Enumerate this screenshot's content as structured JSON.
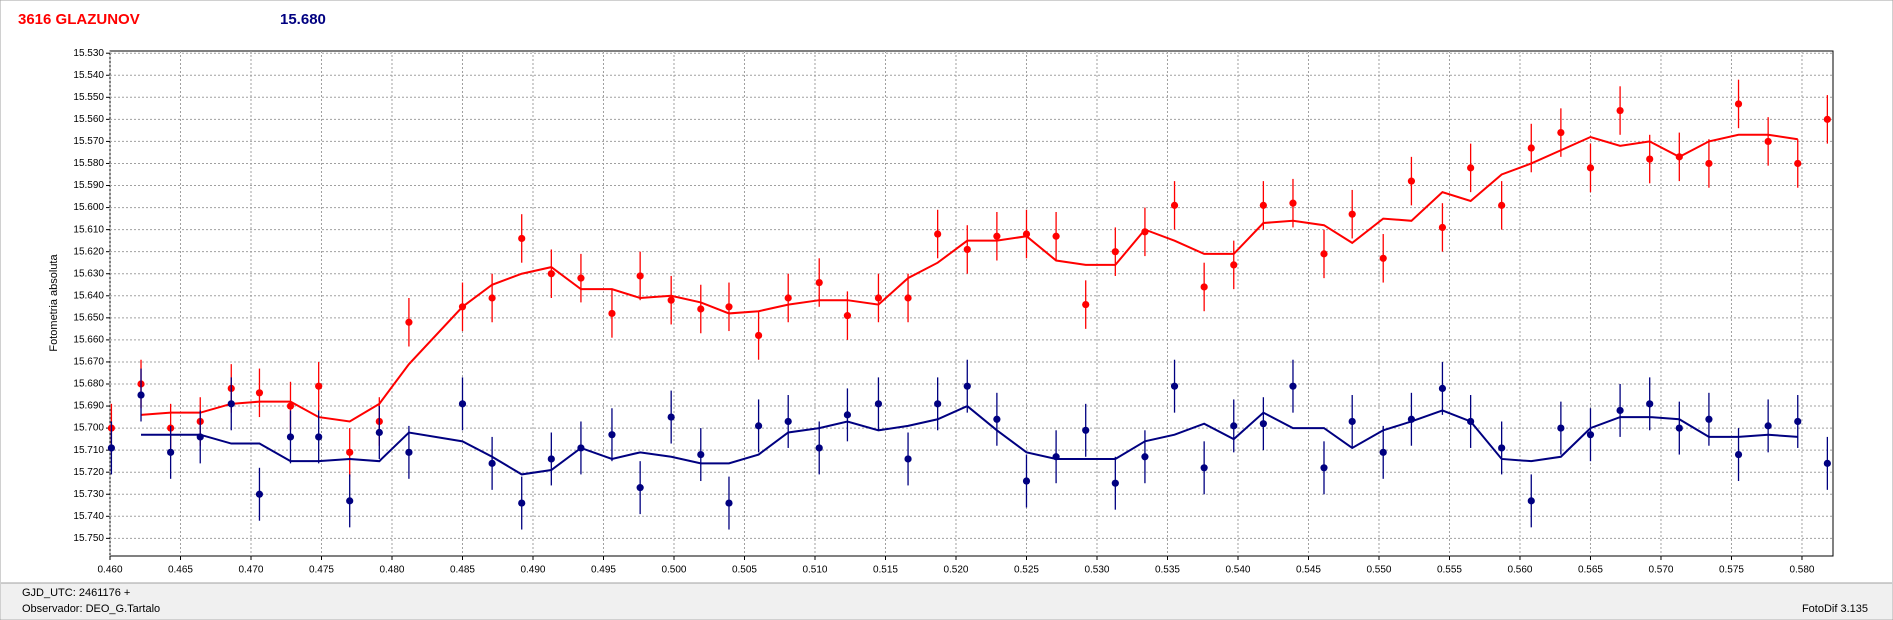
{
  "chart_data": {
    "type": "errorbar_scatter",
    "title": "3616 GLAZUNOV",
    "title_color": "#ff0000",
    "subtitle": "15.680",
    "subtitle_color": "#000080",
    "ylabel": "Fotometria absoluta",
    "footer_left": [
      "GJD_UTC: 2461176 +",
      "Observador: DEO_G.Tartalo"
    ],
    "footer_right": "FotoDif 3.135",
    "y_inverted": true,
    "grid": true,
    "xlim": [
      0.46,
      0.5822
    ],
    "ylim": [
      15.529,
      15.758
    ],
    "xticks": [
      {
        "value": 0.46,
        "label": "0.460"
      },
      {
        "value": 0.465,
        "label": "0.465"
      },
      {
        "value": 0.47,
        "label": "0.470"
      },
      {
        "value": 0.475,
        "label": "0.475"
      },
      {
        "value": 0.48,
        "label": "0.480"
      },
      {
        "value": 0.485,
        "label": "0.485"
      },
      {
        "value": 0.49,
        "label": "0.490"
      },
      {
        "value": 0.495,
        "label": "0.495"
      },
      {
        "value": 0.5,
        "label": "0.500"
      },
      {
        "value": 0.505,
        "label": "0.505"
      },
      {
        "value": 0.51,
        "label": "0.510"
      },
      {
        "value": 0.515,
        "label": "0.515"
      },
      {
        "value": 0.52,
        "label": "0.520"
      },
      {
        "value": 0.525,
        "label": "0.525"
      },
      {
        "value": 0.53,
        "label": "0.530"
      },
      {
        "value": 0.535,
        "label": "0.535"
      },
      {
        "value": 0.54,
        "label": "0.540"
      },
      {
        "value": 0.545,
        "label": "0.545"
      },
      {
        "value": 0.55,
        "label": "0.550"
      },
      {
        "value": 0.555,
        "label": "0.555"
      },
      {
        "value": 0.56,
        "label": "0.560"
      },
      {
        "value": 0.565,
        "label": "0.565"
      },
      {
        "value": 0.57,
        "label": "0.570"
      },
      {
        "value": 0.575,
        "label": "0.575"
      },
      {
        "value": 0.58,
        "label": "0.580"
      }
    ],
    "yticks": [
      {
        "value": 15.53,
        "label": "15.530"
      },
      {
        "value": 15.54,
        "label": "15.540"
      },
      {
        "value": 15.55,
        "label": "15.550"
      },
      {
        "value": 15.56,
        "label": "15.560"
      },
      {
        "value": 15.57,
        "label": "15.570"
      },
      {
        "value": 15.58,
        "label": "15.580"
      },
      {
        "value": 15.59,
        "label": "15.590"
      },
      {
        "value": 15.6,
        "label": "15.600"
      },
      {
        "value": 15.61,
        "label": "15.610"
      },
      {
        "value": 15.62,
        "label": "15.620"
      },
      {
        "value": 15.63,
        "label": "15.630"
      },
      {
        "value": 15.64,
        "label": "15.640"
      },
      {
        "value": 15.65,
        "label": "15.650"
      },
      {
        "value": 15.66,
        "label": "15.660"
      },
      {
        "value": 15.67,
        "label": "15.670"
      },
      {
        "value": 15.68,
        "label": "15.680"
      },
      {
        "value": 15.69,
        "label": "15.690"
      },
      {
        "value": 15.7,
        "label": "15.700"
      },
      {
        "value": 15.71,
        "label": "15.710"
      },
      {
        "value": 15.72,
        "label": "15.720"
      },
      {
        "value": 15.73,
        "label": "15.730"
      },
      {
        "value": 15.74,
        "label": "15.740"
      },
      {
        "value": 15.75,
        "label": "15.750"
      }
    ],
    "x": [
      0.4601,
      0.4622,
      0.4643,
      0.4664,
      0.4686,
      0.4706,
      0.4728,
      0.4748,
      0.477,
      0.4791,
      0.4812,
      0.485,
      0.4871,
      0.4892,
      0.4913,
      0.4934,
      0.4956,
      0.4976,
      0.4998,
      0.5019,
      0.5039,
      0.506,
      0.5081,
      0.5103,
      0.5123,
      0.5145,
      0.5166,
      0.5187,
      0.5208,
      0.5229,
      0.525,
      0.5271,
      0.5292,
      0.5313,
      0.5334,
      0.5355,
      0.5376,
      0.5397,
      0.5418,
      0.5439,
      0.5461,
      0.5481,
      0.5503,
      0.5523,
      0.5545,
      0.5565,
      0.5587,
      0.5608,
      0.5629,
      0.565,
      0.5671,
      0.5692,
      0.5713,
      0.5734,
      0.5755,
      0.5776,
      0.5797,
      0.5818
    ],
    "series": [
      {
        "color": "#ff0000",
        "error": 0.011,
        "values": [
          15.7,
          15.68,
          15.7,
          15.697,
          15.682,
          15.684,
          15.69,
          15.681,
          15.711,
          15.697,
          15.652,
          15.645,
          15.641,
          15.614,
          15.63,
          15.632,
          15.648,
          15.631,
          15.642,
          15.646,
          15.645,
          15.658,
          15.641,
          15.634,
          15.649,
          15.641,
          15.641,
          15.612,
          15.619,
          15.613,
          15.612,
          15.613,
          15.644,
          15.62,
          15.611,
          15.599,
          15.636,
          15.626,
          15.599,
          15.598,
          15.621,
          15.603,
          15.623,
          15.588,
          15.609,
          15.582,
          15.599,
          15.573,
          15.566,
          15.582,
          15.556,
          15.578,
          15.577,
          15.58,
          15.553,
          15.57,
          15.58,
          15.56
        ],
        "fit": [
          null,
          15.694,
          15.693,
          15.693,
          15.689,
          15.688,
          15.688,
          15.695,
          15.697,
          15.689,
          15.671,
          15.645,
          15.635,
          15.63,
          15.627,
          15.637,
          15.637,
          15.641,
          15.64,
          15.643,
          15.648,
          15.647,
          15.644,
          15.642,
          15.642,
          15.644,
          15.632,
          15.625,
          15.615,
          15.615,
          15.613,
          15.624,
          15.626,
          15.626,
          15.61,
          15.615,
          15.621,
          15.621,
          15.607,
          15.606,
          15.608,
          15.616,
          15.605,
          15.606,
          15.593,
          15.597,
          15.585,
          15.58,
          15.574,
          15.568,
          15.572,
          15.57,
          15.577,
          15.57,
          15.567,
          15.567,
          15.569,
          null
        ]
      },
      {
        "color": "#000080",
        "error": 0.012,
        "values": [
          15.709,
          15.685,
          15.711,
          15.704,
          15.689,
          15.73,
          15.704,
          15.704,
          15.733,
          15.702,
          15.711,
          15.689,
          15.716,
          15.734,
          15.714,
          15.709,
          15.703,
          15.727,
          15.695,
          15.712,
          15.734,
          15.699,
          15.697,
          15.709,
          15.694,
          15.689,
          15.714,
          15.689,
          15.681,
          15.696,
          15.724,
          15.713,
          15.701,
          15.725,
          15.713,
          15.681,
          15.718,
          15.699,
          15.698,
          15.681,
          15.718,
          15.697,
          15.711,
          15.696,
          15.682,
          15.697,
          15.709,
          15.733,
          15.7,
          15.703,
          15.692,
          15.689,
          15.7,
          15.696,
          15.712,
          15.699,
          15.697,
          15.716
        ],
        "fit": [
          null,
          15.703,
          15.703,
          15.703,
          15.707,
          15.707,
          15.715,
          15.715,
          15.714,
          15.715,
          15.702,
          15.706,
          15.713,
          15.721,
          15.719,
          15.709,
          15.714,
          15.711,
          15.713,
          15.716,
          15.716,
          15.712,
          15.702,
          15.7,
          15.697,
          15.701,
          15.699,
          15.696,
          15.69,
          15.701,
          15.711,
          15.714,
          15.714,
          15.714,
          15.706,
          15.703,
          15.698,
          15.705,
          15.693,
          15.7,
          15.7,
          15.709,
          15.701,
          15.697,
          15.692,
          15.697,
          15.714,
          15.715,
          15.713,
          15.7,
          15.695,
          15.695,
          15.696,
          15.704,
          15.704,
          15.703,
          15.704,
          null
        ]
      }
    ]
  }
}
